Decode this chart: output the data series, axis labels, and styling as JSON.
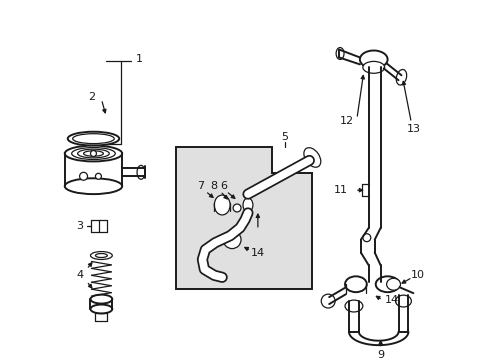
{
  "bg_color": "#ffffff",
  "line_color": "#1a1a1a",
  "gray_fill": "#e0e0e0",
  "fig_w": 4.89,
  "fig_h": 3.6,
  "dpi": 100
}
